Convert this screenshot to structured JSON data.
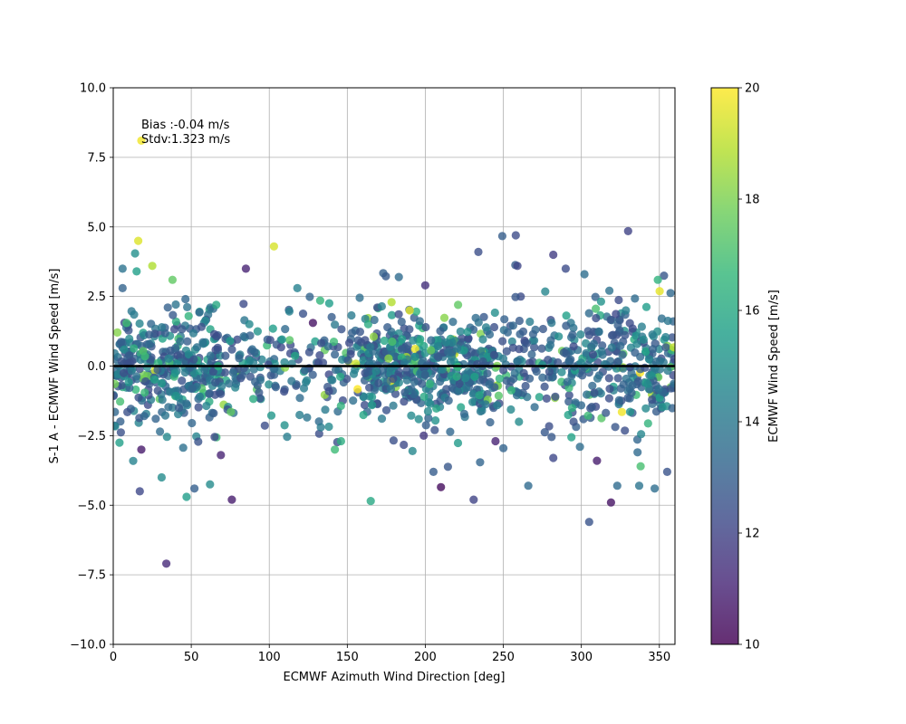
{
  "chart_data": {
    "type": "scatter",
    "title": "",
    "xlabel": "ECMWF Azimuth Wind Direction [deg]",
    "ylabel": "S-1 A - ECMWF Wind Speed [m/s]",
    "xlim": [
      0,
      360
    ],
    "ylim": [
      -10,
      10
    ],
    "xticks": [
      "0",
      "50",
      "100",
      "150",
      "200",
      "250",
      "300",
      "350"
    ],
    "yticks": [
      "−10.0",
      "−7.5",
      "−5.0",
      "−2.5",
      "0.0",
      "2.5",
      "5.0",
      "7.5",
      "10.0"
    ],
    "grid": true,
    "annotations": [
      "Bias :-0.04 m/s",
      "Stdv:1.323 m/s"
    ],
    "reference_line": {
      "y": 0
    },
    "colorbar": {
      "label": "ECMWF Wind Speed [m/s]",
      "range": [
        10,
        20
      ],
      "ticks": [
        "10",
        "12",
        "14",
        "16",
        "18",
        "20"
      ],
      "colormap": "viridis"
    },
    "point_count": 1400,
    "density_bands": [
      {
        "x_range": [
          0,
          70
        ],
        "y_spread": 1.0,
        "weight": 0.25
      },
      {
        "x_range": [
          70,
          160
        ],
        "y_spread": 0.9,
        "weight": 0.13
      },
      {
        "x_range": [
          160,
          240
        ],
        "y_spread": 0.9,
        "weight": 0.32
      },
      {
        "x_range": [
          240,
          290
        ],
        "y_spread": 1.0,
        "weight": 0.1
      },
      {
        "x_range": [
          290,
          360
        ],
        "y_spread": 1.1,
        "weight": 0.2
      }
    ],
    "outliers": [
      {
        "x": 18,
        "y": 8.1,
        "c": 19.8
      },
      {
        "x": 16,
        "y": 4.5,
        "c": 19.5
      },
      {
        "x": 103,
        "y": 4.3,
        "c": 19.4
      },
      {
        "x": 25,
        "y": 3.6,
        "c": 18.8
      },
      {
        "x": 38,
        "y": 3.1,
        "c": 17.5
      },
      {
        "x": 85,
        "y": 3.5,
        "c": 11.0
      },
      {
        "x": 34,
        "y": -7.1,
        "c": 11.2
      },
      {
        "x": 258,
        "y": 4.7,
        "c": 12.3
      },
      {
        "x": 330,
        "y": 4.85,
        "c": 12.0
      },
      {
        "x": 234,
        "y": 4.1,
        "c": 12.4
      },
      {
        "x": 282,
        "y": 4.0,
        "c": 11.8
      },
      {
        "x": 305,
        "y": -5.6,
        "c": 12.6
      },
      {
        "x": 319,
        "y": -4.9,
        "c": 10.5
      },
      {
        "x": 76,
        "y": -4.8,
        "c": 10.8
      },
      {
        "x": 165,
        "y": -4.85,
        "c": 16.0
      },
      {
        "x": 17,
        "y": -4.5,
        "c": 12.2
      },
      {
        "x": 47,
        "y": -4.7,
        "c": 15.5
      },
      {
        "x": 52,
        "y": -4.4,
        "c": 13.0
      },
      {
        "x": 231,
        "y": -4.8,
        "c": 12.0
      },
      {
        "x": 210,
        "y": -4.35,
        "c": 10.3
      },
      {
        "x": 266,
        "y": -4.3,
        "c": 13.4
      },
      {
        "x": 355,
        "y": -3.8,
        "c": 12.6
      },
      {
        "x": 338,
        "y": -3.6,
        "c": 17.0
      },
      {
        "x": 347,
        "y": -4.4,
        "c": 13.6
      },
      {
        "x": 142,
        "y": -3.0,
        "c": 16.8
      },
      {
        "x": 146,
        "y": -2.7,
        "c": 16.2
      },
      {
        "x": 183,
        "y": 3.2,
        "c": 13.5
      },
      {
        "x": 259,
        "y": 3.6,
        "c": 12.1
      },
      {
        "x": 290,
        "y": 3.5,
        "c": 12.3
      },
      {
        "x": 353,
        "y": 3.25,
        "c": 12.7
      },
      {
        "x": 349,
        "y": 3.1,
        "c": 16.4
      },
      {
        "x": 302,
        "y": 3.3,
        "c": 13.6
      },
      {
        "x": 118,
        "y": 2.8,
        "c": 14.4
      },
      {
        "x": 6,
        "y": 3.5,
        "c": 13.8
      },
      {
        "x": 14,
        "y": 4.05,
        "c": 15.0
      },
      {
        "x": 6,
        "y": 2.8,
        "c": 13.2
      },
      {
        "x": 15,
        "y": 3.4,
        "c": 15.6
      },
      {
        "x": 66,
        "y": 2.2,
        "c": 16.0
      },
      {
        "x": 128,
        "y": 1.55,
        "c": 10.5
      },
      {
        "x": 200,
        "y": 2.9,
        "c": 11.4
      },
      {
        "x": 190,
        "y": 2.0,
        "c": 19.6
      },
      {
        "x": 221,
        "y": 2.2,
        "c": 17.5
      },
      {
        "x": 326,
        "y": -1.65,
        "c": 19.8
      },
      {
        "x": 199,
        "y": -2.5,
        "c": 11.6
      },
      {
        "x": 245,
        "y": -2.7,
        "c": 11.0
      },
      {
        "x": 250,
        "y": -2.95,
        "c": 13.2
      },
      {
        "x": 310,
        "y": -3.4,
        "c": 10.8
      },
      {
        "x": 4,
        "y": -2.75,
        "c": 15.6
      },
      {
        "x": 18,
        "y": -3.0,
        "c": 10.7
      },
      {
        "x": 31,
        "y": -4.0,
        "c": 14.8
      },
      {
        "x": 62,
        "y": -4.25,
        "c": 14.8
      },
      {
        "x": 69,
        "y": -3.2,
        "c": 11.0
      },
      {
        "x": 133,
        "y": -2.2,
        "c": 14.2
      },
      {
        "x": 206,
        "y": -2.3,
        "c": 12.5
      },
      {
        "x": 282,
        "y": -3.3,
        "c": 12.2
      },
      {
        "x": 323,
        "y": -4.3,
        "c": 13.5
      },
      {
        "x": 336,
        "y": -3.1,
        "c": 13.4
      },
      {
        "x": 260,
        "y": -2.0,
        "c": 14.8
      },
      {
        "x": 295,
        "y": -2.0,
        "c": 12.5
      }
    ]
  }
}
